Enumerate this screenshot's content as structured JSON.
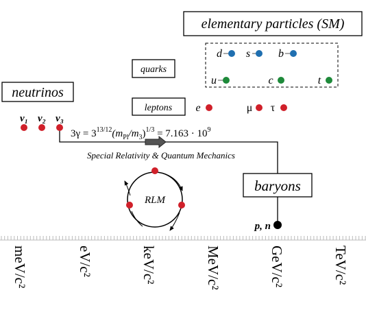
{
  "boxes": {
    "sm": "elementary particles (SM)",
    "quarks": "quarks",
    "leptons": "leptons",
    "neutrinos": "neutrinos",
    "baryons": "baryons"
  },
  "quarks": [
    "d",
    "s",
    "b",
    "u",
    "c",
    "t"
  ],
  "leptons": [
    "e",
    "μ",
    "τ"
  ],
  "neutrinos": [
    "ν₁",
    "ν₂",
    "ν₃"
  ],
  "formula": [
    "3γ = 3",
    "13/12",
    "(m",
    "Pl",
    "/m",
    "3",
    ")",
    "1/3",
    " = 7.163 · 10",
    "9"
  ],
  "arrow_label": "Special Relativity & Quantum Mechanics",
  "cycle": "RLM",
  "baryon_label": "p, n",
  "scale": [
    "meV/c²",
    "eV/c²",
    "keV/c²",
    "MeV/c²",
    "GeV/c²",
    "TeV/c²"
  ]
}
